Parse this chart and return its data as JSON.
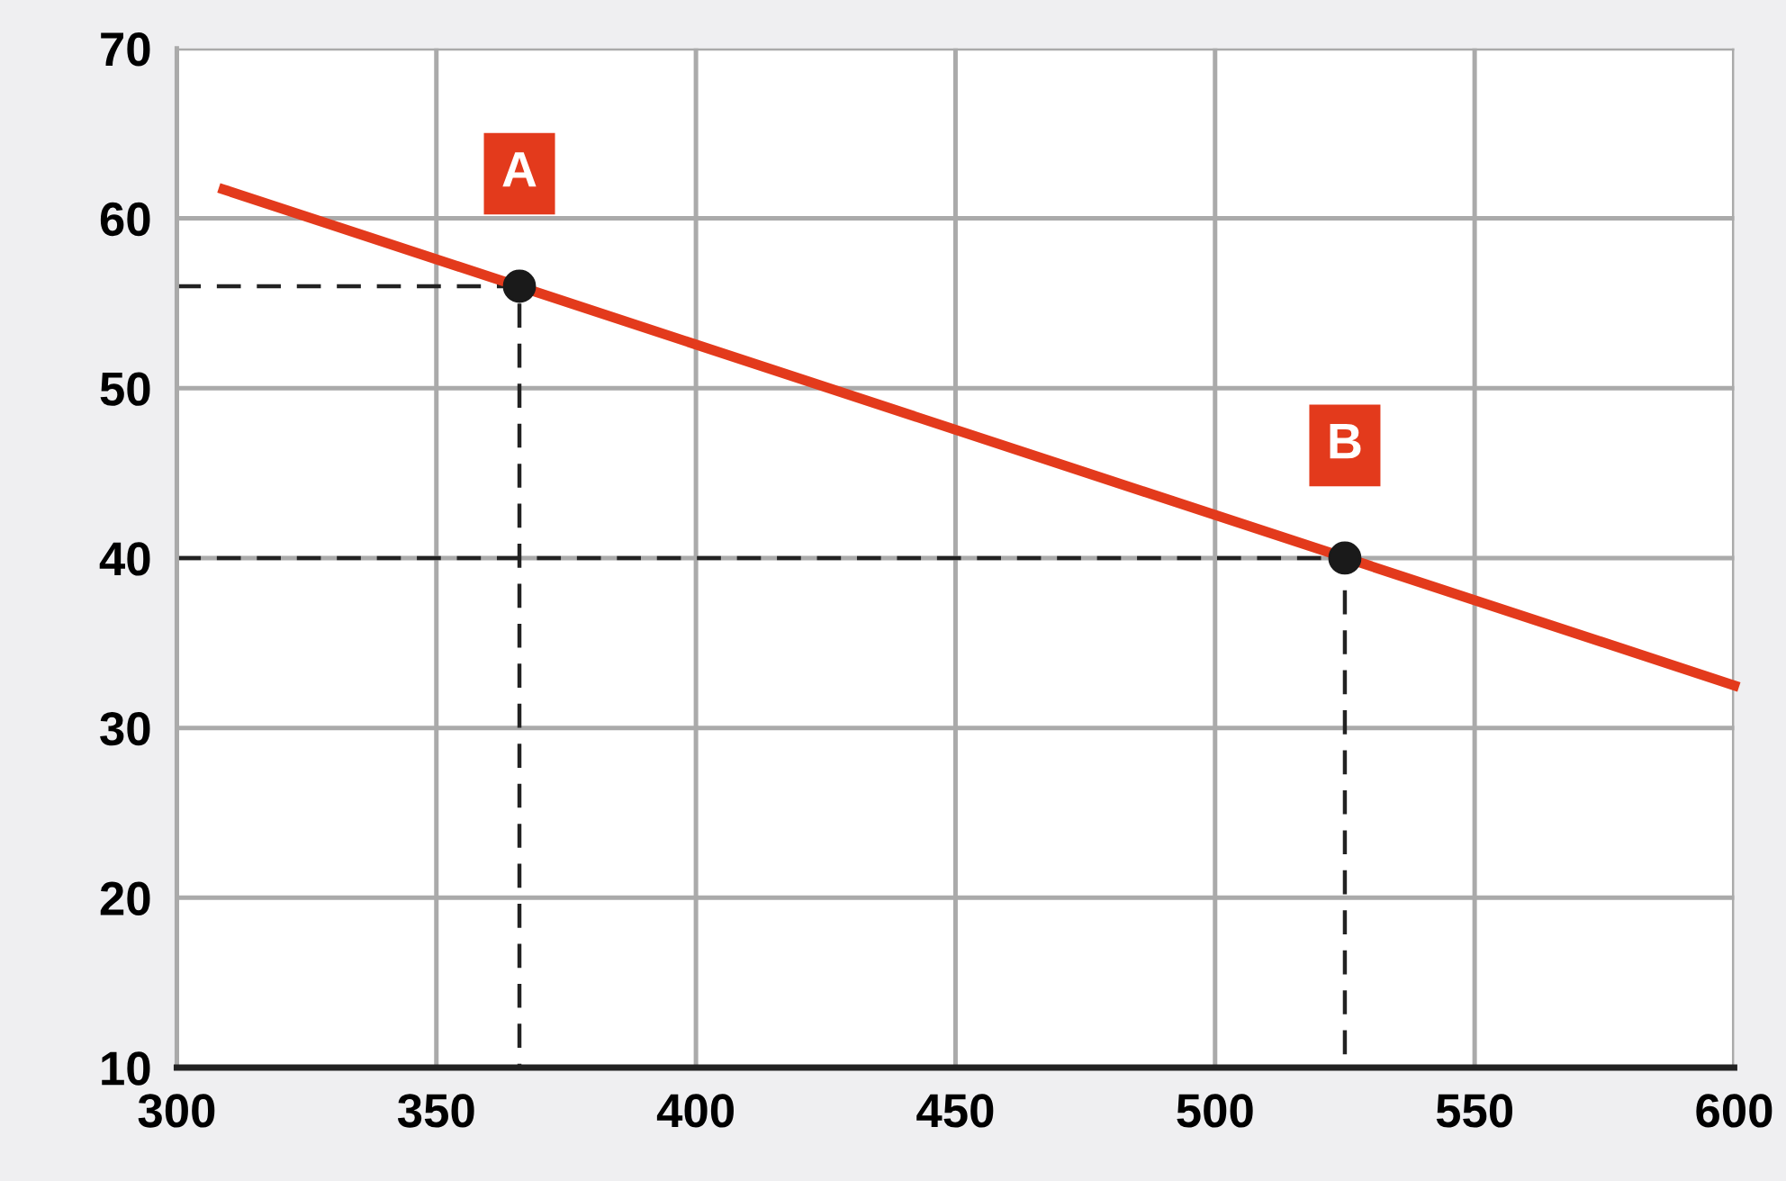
{
  "chart_data": {
    "type": "line",
    "xlim": [
      300,
      600
    ],
    "ylim": [
      10,
      70
    ],
    "xticks": [
      300,
      350,
      400,
      450,
      500,
      550,
      600
    ],
    "yticks": [
      10,
      20,
      30,
      40,
      50,
      60,
      70
    ],
    "grid": true,
    "legend": false,
    "series": [
      {
        "color": "#e33a1c",
        "x": [
          309,
          600
        ],
        "values": [
          61.7,
          32.5
        ],
        "marker": "none",
        "line_style": "solid"
      },
      {
        "type": "line",
        "color": "#222222",
        "x": [
          300,
          366,
          366
        ],
        "values": [
          56,
          56,
          10
        ],
        "marker": "none",
        "line_style": "dashed"
      },
      {
        "type": "line",
        "color": "#222222",
        "x": [
          300,
          525,
          525
        ],
        "values": [
          40,
          40,
          10
        ],
        "marker": "none",
        "line_style": "dashed"
      },
      {
        "type": "scatter",
        "color": "#1a1a1a",
        "x": [
          366,
          525
        ],
        "values": [
          56,
          40
        ],
        "marker": "circle"
      }
    ],
    "annotations": [
      {
        "text": "A",
        "x": 366,
        "y": 56
      },
      {
        "text": "B",
        "x": 525,
        "y": 40
      }
    ]
  }
}
